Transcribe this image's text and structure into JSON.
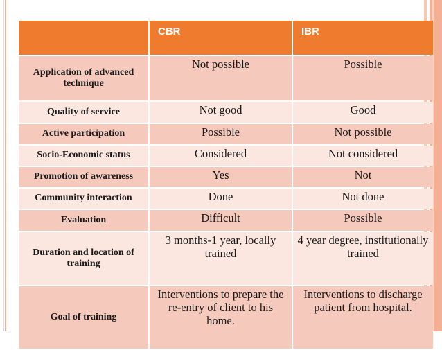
{
  "slide": {
    "type": "presentation-slide-table"
  },
  "colors": {
    "header-orange": "#ee7b2e",
    "band-dark": "#f6c9bd",
    "band-light": "#fbe7df",
    "right-strip": "#f4b095",
    "left-line-dark": "#edaf9f",
    "text-dark": "#1a1a1a",
    "header-text": "#ffffff"
  },
  "table": {
    "header": {
      "blank": "",
      "cbr": "CBR",
      "ibr": "IBR"
    },
    "rows": [
      {
        "label": "Application of advanced technique",
        "cbr": "Not possible",
        "ibr": "Possible"
      },
      {
        "label": "Quality of service",
        "cbr": "Not good",
        "ibr": "Good"
      },
      {
        "label": "Active participation",
        "cbr": "Possible",
        "ibr": "Not possible"
      },
      {
        "label": "Socio-Economic status",
        "cbr": "Considered",
        "ibr": "Not considered"
      },
      {
        "label": "Promotion of awareness",
        "cbr": "Yes",
        "ibr": "Not"
      },
      {
        "label": "Community interaction",
        "cbr": "Done",
        "ibr": "Not done"
      },
      {
        "label": "Evaluation",
        "cbr": "Difficult",
        "ibr": "Possible"
      },
      {
        "label": "Duration and location of training",
        "cbr": "3 months-1 year, locally trained",
        "ibr": "4 year degree, institutionally trained"
      },
      {
        "label": "Goal of training",
        "cbr": "Interventions to prepare the re-entry of client to his home.",
        "ibr": "Interventions to discharge patient from hospital."
      }
    ]
  }
}
